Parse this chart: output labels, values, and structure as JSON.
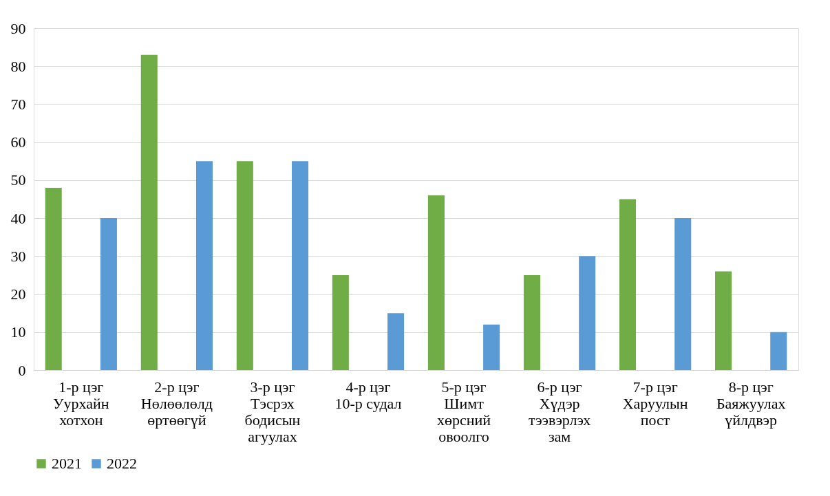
{
  "chart_data": {
    "type": "bar",
    "categories": [
      "1-р цэг Уурхайн хотхон",
      "2-р цэг Нөлөөлөлд өртөөгүй",
      "3-р цэг Тэсрэх бодисын агуулах",
      "4-р цэг 10-р судал",
      "5-р цэг Шимт хөрсний овоолго",
      "6-р цэг Хүдэр тээвэрлэх зам",
      "7-р цэг Харуулын пост",
      "8-р цэг Баяжуулах үйлдвэр"
    ],
    "series": [
      {
        "name": "2021",
        "color": "#70ad47",
        "values": [
          48,
          83,
          55,
          25,
          46,
          25,
          45,
          26
        ]
      },
      {
        "name": "2022",
        "color": "#5b9bd5",
        "values": [
          40,
          55,
          55,
          15,
          12,
          30,
          40,
          10
        ]
      }
    ],
    "ylim": [
      0,
      90
    ],
    "yticks": [
      0,
      10,
      20,
      30,
      40,
      50,
      60,
      70,
      80,
      90
    ],
    "grid": "y",
    "legend": "bottom"
  }
}
